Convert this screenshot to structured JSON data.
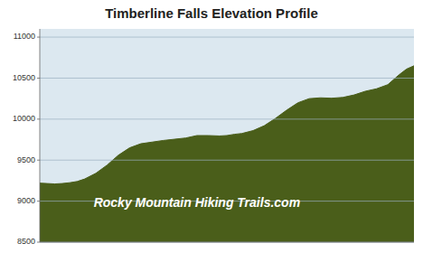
{
  "chart_data": {
    "type": "area",
    "title": "Timberline Falls Elevation Profile",
    "x": [
      0.0,
      0.02,
      0.04,
      0.06,
      0.08,
      0.1,
      0.12,
      0.15,
      0.18,
      0.21,
      0.24,
      0.27,
      0.3,
      0.33,
      0.36,
      0.39,
      0.42,
      0.45,
      0.48,
      0.5,
      0.52,
      0.54,
      0.57,
      0.6,
      0.63,
      0.66,
      0.69,
      0.72,
      0.75,
      0.78,
      0.81,
      0.84,
      0.87,
      0.9,
      0.93,
      0.96,
      0.98,
      1.0
    ],
    "values": [
      9220,
      9215,
      9210,
      9215,
      9225,
      9240,
      9270,
      9340,
      9440,
      9560,
      9650,
      9700,
      9720,
      9740,
      9755,
      9770,
      9800,
      9800,
      9795,
      9800,
      9815,
      9825,
      9860,
      9920,
      10010,
      10110,
      10200,
      10250,
      10260,
      10255,
      10265,
      10295,
      10340,
      10370,
      10420,
      10540,
      10610,
      10650
    ],
    "color": "#4a5e1a",
    "xlim": [
      0,
      1
    ],
    "ylim": [
      8500,
      11100
    ],
    "yticks": [
      8500,
      9000,
      9500,
      10000,
      10500,
      11000
    ],
    "grid": true,
    "tick_labels": "y",
    "annotations": [
      "Rocky Mountain Hiking Trails.com"
    ]
  }
}
